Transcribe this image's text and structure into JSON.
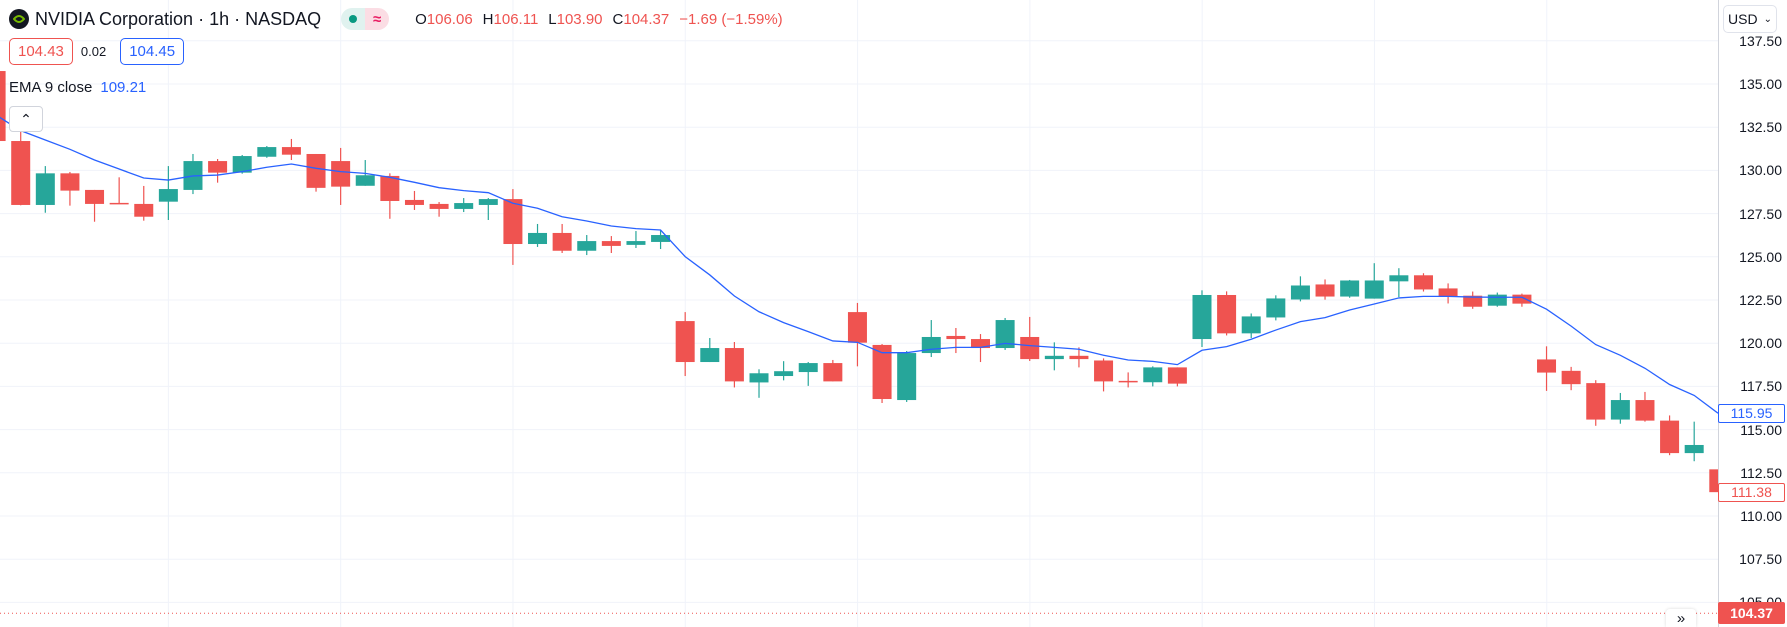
{
  "header": {
    "symbol_title": "NVIDIA Corporation · 1h · NASDAQ",
    "ohlc": {
      "o_label": "O",
      "o": "106.06",
      "h_label": "H",
      "h": "106.11",
      "l_label": "L",
      "l": "103.90",
      "c_label": "C",
      "c": "104.37",
      "change": "−1.69 (−1.59%)"
    },
    "status_icons": [
      "market-open-dot-icon",
      "delayed-data-icon"
    ]
  },
  "quote": {
    "bid": "104.43",
    "spread": "0.02",
    "ask": "104.45"
  },
  "indicator": {
    "name": "EMA 9 close",
    "value": "109.21"
  },
  "axis": {
    "currency": "USD",
    "labels": [
      "137.50",
      "135.00",
      "132.50",
      "130.00",
      "127.50",
      "125.00",
      "122.50",
      "120.00",
      "117.50",
      "115.00",
      "112.50",
      "110.00",
      "107.50",
      "105.00"
    ]
  },
  "price_labels": {
    "ema": "115.95",
    "last_visible": "111.38",
    "current": "104.37"
  },
  "colors": {
    "up": "#26a69a",
    "down": "#ef5350",
    "ema": "#2962ff",
    "grid": "#f0f3fa"
  },
  "chart_data": {
    "type": "candlestick",
    "ylim": [
      104,
      138
    ],
    "grid": true,
    "ohlc": [
      [
        135.75,
        135.8,
        131.6,
        131.7
      ],
      [
        131.7,
        132.34,
        127.98,
        128.0
      ],
      [
        128.0,
        130.25,
        127.55,
        129.83
      ],
      [
        129.83,
        129.91,
        127.96,
        128.83
      ],
      [
        128.87,
        128.87,
        127.03,
        128.06
      ],
      [
        128.12,
        129.6,
        128.06,
        128.08
      ],
      [
        128.06,
        129.1,
        127.09,
        127.32
      ],
      [
        128.19,
        130.25,
        127.13,
        128.92
      ],
      [
        128.87,
        130.95,
        128.63,
        130.54
      ],
      [
        130.54,
        130.66,
        129.29,
        129.87
      ],
      [
        129.87,
        130.89,
        129.81,
        130.83
      ],
      [
        130.79,
        131.41,
        130.73,
        131.35
      ],
      [
        131.35,
        131.82,
        130.6,
        130.91
      ],
      [
        130.95,
        130.95,
        128.77,
        128.99
      ],
      [
        130.54,
        131.3,
        128.0,
        129.06
      ],
      [
        129.11,
        130.6,
        129.11,
        129.72
      ],
      [
        129.68,
        129.83,
        127.2,
        128.23
      ],
      [
        128.29,
        128.81,
        127.71,
        128.0
      ],
      [
        128.06,
        128.17,
        127.32,
        127.77
      ],
      [
        127.77,
        128.4,
        127.59,
        128.11
      ],
      [
        128.0,
        128.4,
        127.13,
        128.34
      ],
      [
        128.34,
        128.92,
        124.53,
        125.74
      ],
      [
        125.74,
        126.9,
        125.57,
        126.38
      ],
      [
        126.38,
        126.9,
        125.22,
        125.35
      ],
      [
        125.35,
        126.26,
        125.1,
        125.91
      ],
      [
        125.91,
        126.2,
        125.22,
        125.63
      ],
      [
        125.69,
        126.49,
        125.51,
        125.91
      ],
      [
        125.86,
        126.55,
        125.45,
        126.26
      ],
      [
        121.28,
        121.8,
        118.1,
        118.91
      ],
      [
        118.91,
        120.3,
        118.91,
        119.72
      ],
      [
        119.72,
        120.07,
        117.44,
        117.79
      ],
      [
        117.73,
        118.49,
        116.84,
        118.26
      ],
      [
        118.1,
        118.96,
        117.85,
        118.38
      ],
      [
        118.33,
        118.91,
        117.53,
        118.85
      ],
      [
        118.85,
        119.03,
        117.79,
        117.79
      ],
      [
        121.8,
        122.33,
        118.66,
        120.03
      ],
      [
        119.9,
        119.95,
        116.54,
        116.77
      ],
      [
        116.71,
        119.55,
        116.6,
        119.43
      ],
      [
        119.43,
        121.34,
        119.2,
        120.36
      ],
      [
        120.42,
        120.88,
        119.43,
        120.24
      ],
      [
        120.24,
        120.53,
        118.91,
        119.72
      ],
      [
        119.72,
        121.46,
        119.61,
        121.34
      ],
      [
        120.36,
        121.52,
        118.97,
        119.08
      ],
      [
        119.08,
        120.05,
        118.43,
        119.27
      ],
      [
        119.27,
        119.76,
        118.6,
        119.08
      ],
      [
        119.0,
        119.12,
        117.21,
        117.79
      ],
      [
        117.82,
        118.31,
        117.44,
        117.77
      ],
      [
        117.74,
        118.66,
        117.5,
        118.6
      ],
      [
        118.6,
        118.6,
        117.5,
        117.66
      ],
      [
        120.24,
        123.06,
        119.78,
        122.79
      ],
      [
        122.79,
        123.0,
        120.45,
        120.57
      ],
      [
        120.57,
        121.72,
        120.3,
        121.55
      ],
      [
        121.49,
        122.77,
        121.32,
        122.59
      ],
      [
        122.53,
        123.87,
        122.42,
        123.34
      ],
      [
        123.4,
        123.69,
        122.52,
        122.7
      ],
      [
        122.7,
        123.66,
        122.63,
        123.63
      ],
      [
        122.58,
        124.63,
        122.58,
        123.63
      ],
      [
        123.58,
        124.34,
        122.67,
        123.93
      ],
      [
        123.93,
        124.05,
        122.99,
        123.11
      ],
      [
        123.17,
        123.46,
        122.3,
        122.7
      ],
      [
        122.75,
        122.99,
        121.99,
        122.11
      ],
      [
        122.17,
        122.93,
        122.11,
        122.81
      ],
      [
        122.81,
        122.87,
        122.11,
        122.29
      ],
      [
        119.06,
        119.82,
        117.24,
        118.3
      ],
      [
        118.4,
        118.63,
        117.28,
        117.63
      ],
      [
        117.69,
        117.86,
        115.22,
        115.58
      ],
      [
        115.58,
        117.12,
        115.34,
        116.71
      ],
      [
        116.71,
        117.18,
        115.46,
        115.52
      ],
      [
        115.52,
        115.82,
        113.52,
        113.64
      ],
      [
        113.64,
        115.46,
        113.17,
        114.11
      ],
      [
        112.7,
        112.75,
        111.3,
        111.38
      ]
    ],
    "ema9": [
      133.2,
      132.3,
      131.76,
      131.22,
      130.6,
      130.08,
      129.56,
      129.44,
      129.68,
      129.73,
      129.93,
      130.18,
      130.37,
      130.12,
      129.93,
      129.83,
      129.6,
      129.31,
      129.0,
      128.83,
      128.71,
      128.1,
      127.81,
      127.32,
      127.07,
      126.78,
      126.63,
      126.55,
      125.01,
      123.95,
      122.73,
      121.82,
      121.19,
      120.67,
      120.13,
      120.05,
      119.45,
      119.45,
      119.65,
      119.76,
      119.76,
      119.99,
      119.86,
      119.76,
      119.65,
      119.3,
      119.03,
      118.95,
      118.76,
      119.59,
      119.8,
      120.23,
      120.76,
      121.25,
      121.48,
      121.92,
      122.27,
      122.62,
      122.71,
      122.71,
      122.67,
      122.66,
      122.66,
      121.97,
      120.99,
      119.92,
      119.3,
      118.55,
      117.61,
      116.98,
      115.95
    ],
    "current_price_line": 104.37
  }
}
